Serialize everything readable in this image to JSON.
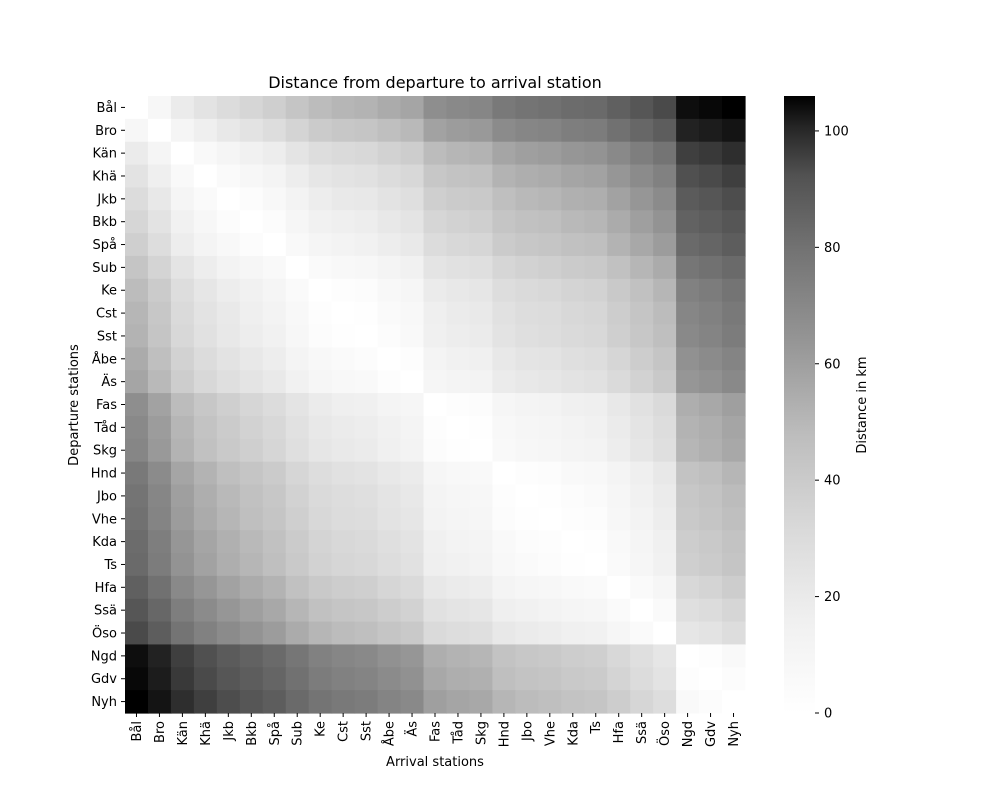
{
  "chart_data": {
    "type": "heatmap",
    "title": "Distance from departure to arrival station",
    "xlabel": "Arrival stations",
    "ylabel": "Departure stations",
    "colorbar_label": "Distance in km",
    "colormap": "Greys",
    "vmin": 0,
    "vmax": 106,
    "colorbar_ticks": [
      0,
      20,
      40,
      60,
      80,
      100
    ],
    "stations": [
      "Bål",
      "Bro",
      "Kän",
      "Khä",
      "Jkb",
      "Bkb",
      "Spå",
      "Sub",
      "Ke",
      "Cst",
      "Sst",
      "Åbe",
      "Äs",
      "Fas",
      "Tåd",
      "Skg",
      "Hnd",
      "Jbo",
      "Vhe",
      "Kda",
      "Ts",
      "Hfa",
      "Ssä",
      "Öso",
      "Ngd",
      "Gdv",
      "Nyh"
    ],
    "station_km": [
      0,
      7,
      16,
      21,
      25,
      28,
      31,
      36,
      40,
      42,
      43,
      46,
      48,
      56,
      58,
      59,
      64,
      66,
      67,
      69,
      70,
      74,
      78,
      82,
      101,
      103,
      106
    ]
  }
}
